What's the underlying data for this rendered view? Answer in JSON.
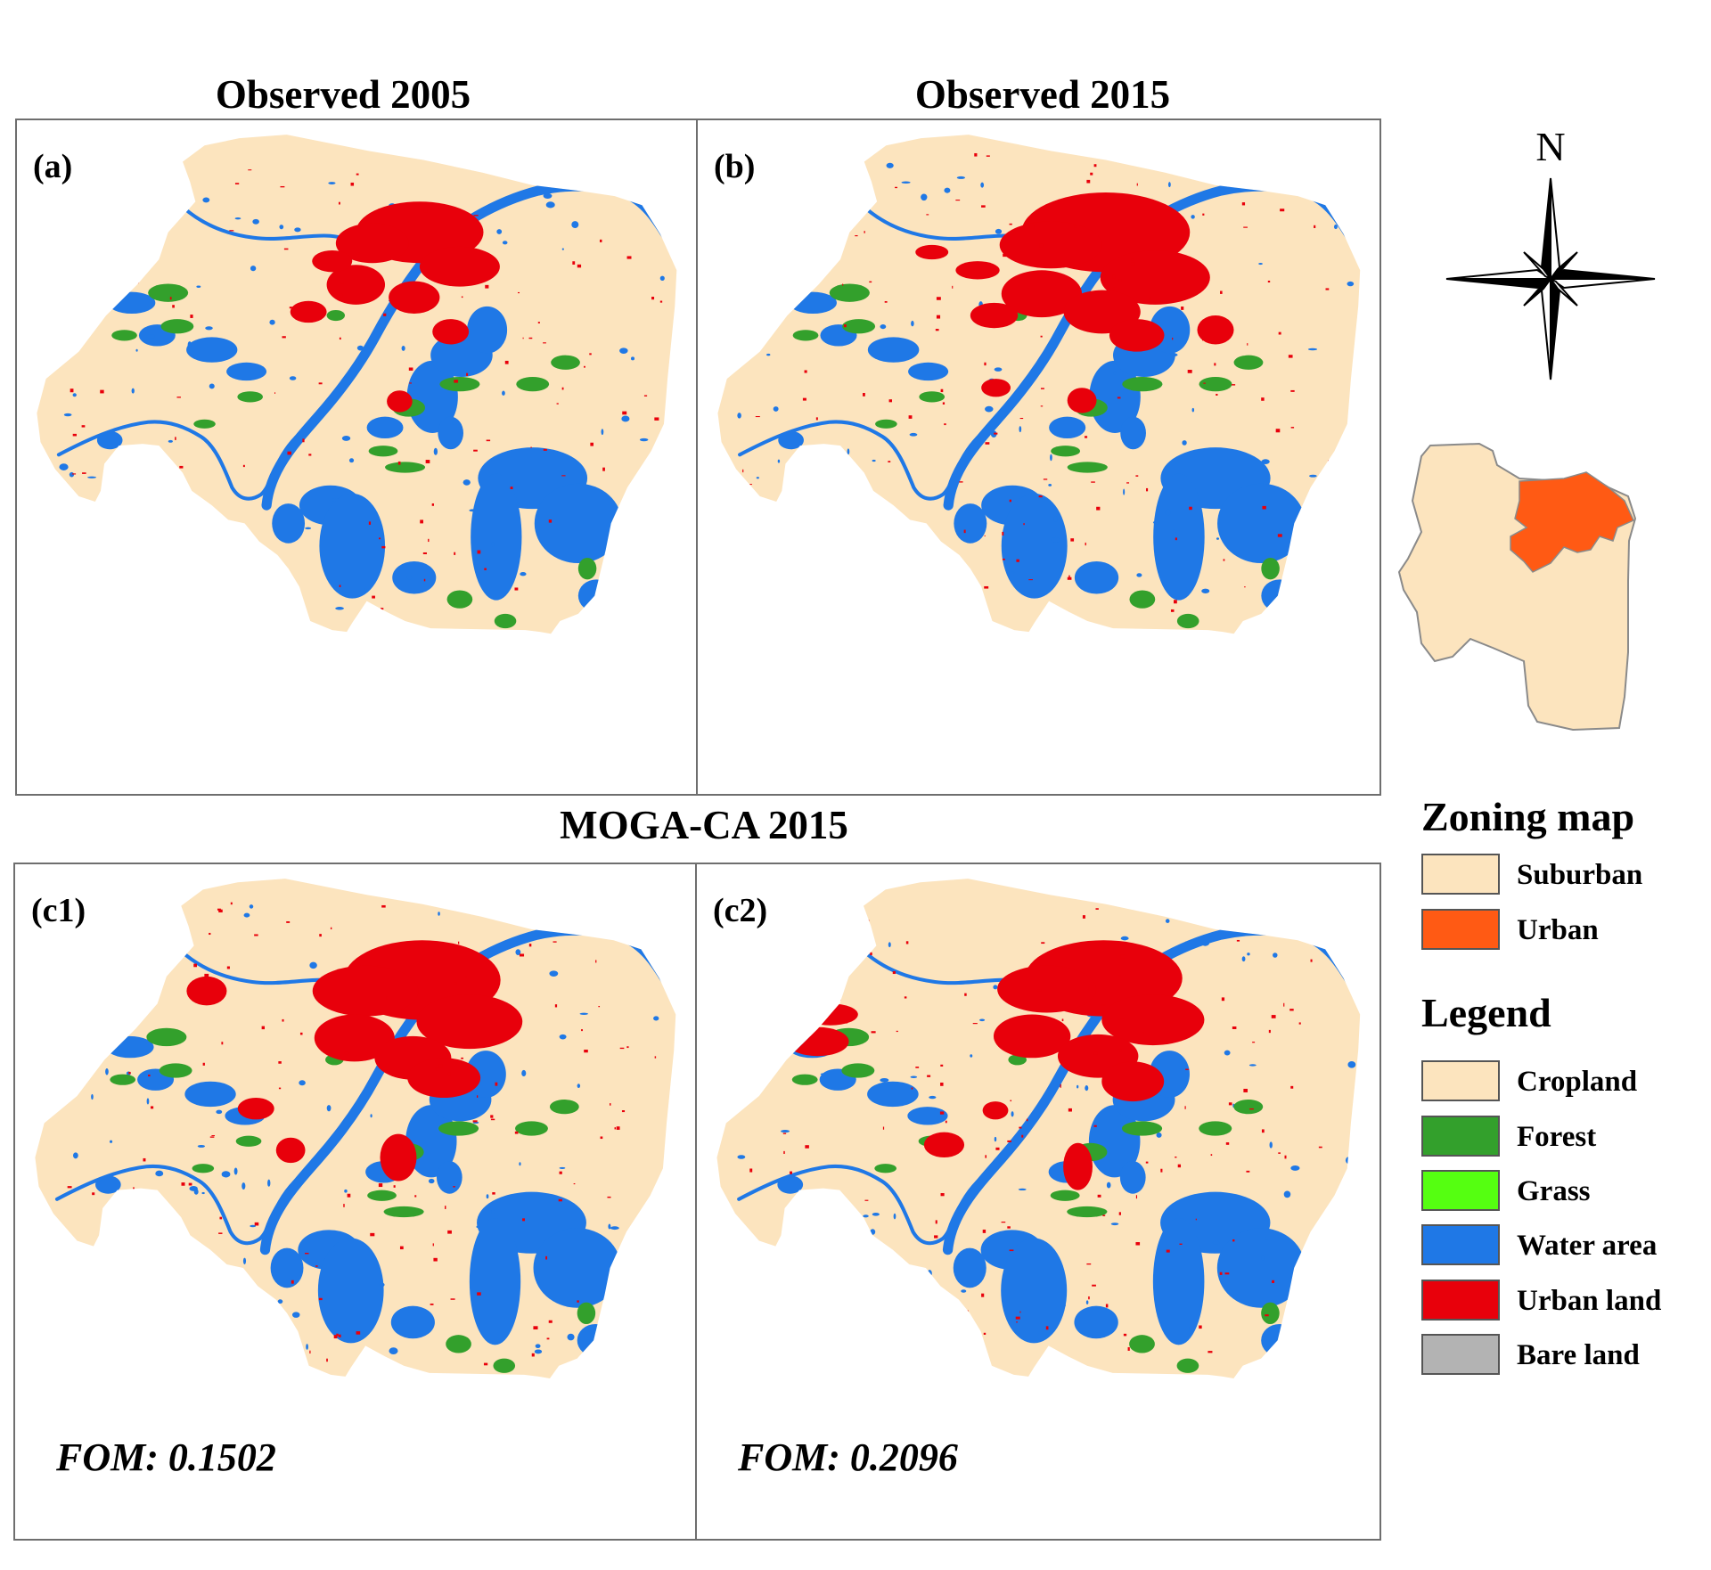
{
  "titles": {
    "top_left": "Observed 2005",
    "top_right": "Observed 2015",
    "bottom_center": "MOGA-CA 2015"
  },
  "panels": [
    {
      "id": "a",
      "label": "(a)",
      "fom": ""
    },
    {
      "id": "b",
      "label": "(b)",
      "fom": ""
    },
    {
      "id": "c1",
      "label": "(c1)",
      "fom": "FOM: 0.1502"
    },
    {
      "id": "c2",
      "label": "(c2)",
      "fom": "FOM: 0.2096"
    }
  ],
  "north_arrow": {
    "label": "N"
  },
  "zoning_map": {
    "title": "Zoning map",
    "items": [
      {
        "label": "Suburban",
        "color": "#FCE4BE"
      },
      {
        "label": "Urban",
        "color": "#FF5A14"
      }
    ]
  },
  "legend": {
    "title": "Legend",
    "items": [
      {
        "label": "Cropland",
        "color": "#FCE4BE"
      },
      {
        "label": "Forest",
        "color": "#33A02C"
      },
      {
        "label": "Grass",
        "color": "#55FF11"
      },
      {
        "label": "Water area",
        "color": "#1F78E6"
      },
      {
        "label": "Urban land",
        "color": "#E8000B"
      },
      {
        "label": "Bare land",
        "color": "#B3B3B3"
      }
    ]
  }
}
